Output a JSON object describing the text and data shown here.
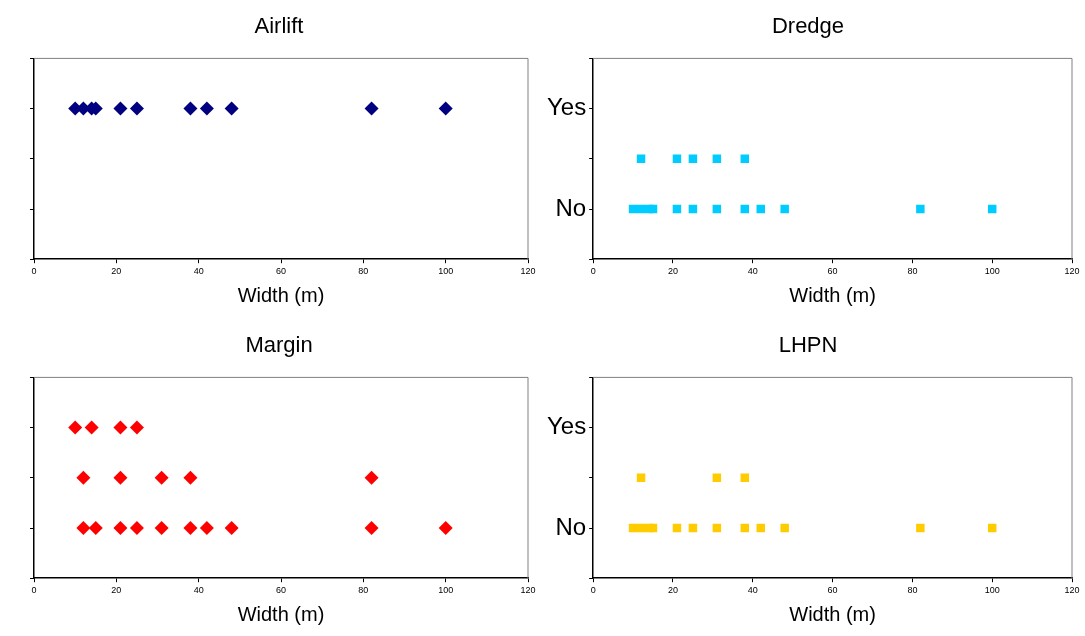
{
  "chart_data": [
    {
      "type": "scatter",
      "orientation": "horizontal",
      "title": "Airlift",
      "xlabel": "Width (m)",
      "xlim": [
        0,
        120
      ],
      "xticks": [
        0,
        20,
        40,
        60,
        80,
        100,
        120
      ],
      "categories": [
        null,
        null,
        null,
        null,
        null
      ],
      "tick_labels": "x",
      "marker": "diamond",
      "series": [
        {
          "color": "#000080",
          "values": [
            null,
            10,
            null,
            null,
            null
          ]
        },
        {
          "color": "#000080",
          "values": [
            null,
            12,
            null,
            null,
            null
          ]
        },
        {
          "color": "#000080",
          "values": [
            null,
            14,
            null,
            null,
            null
          ]
        },
        {
          "color": "#000080",
          "values": [
            null,
            15,
            null,
            null,
            null
          ]
        },
        {
          "color": "#000080",
          "values": [
            null,
            21,
            null,
            null,
            null
          ]
        },
        {
          "color": "#000080",
          "values": [
            null,
            25,
            null,
            null,
            null
          ]
        },
        {
          "color": "#000080",
          "values": [
            null,
            38,
            null,
            null,
            null
          ]
        },
        {
          "color": "#000080",
          "values": [
            null,
            42,
            null,
            null,
            null
          ]
        },
        {
          "color": "#000080",
          "values": [
            null,
            48,
            null,
            null,
            null
          ]
        },
        {
          "color": "#000080",
          "values": [
            null,
            82,
            null,
            null,
            null
          ]
        },
        {
          "color": "#000080",
          "values": [
            null,
            100,
            null,
            null,
            null
          ]
        }
      ]
    },
    {
      "type": "scatter",
      "orientation": "horizontal",
      "title": "Dredge",
      "xlabel": "Width (m)",
      "xlim": [
        0,
        120
      ],
      "xticks": [
        0,
        20,
        40,
        60,
        80,
        100,
        120
      ],
      "categories": [
        null,
        "Yes",
        null,
        "No",
        null
      ],
      "marker": "square",
      "series": [
        {
          "color": "#00ccff",
          "values": [
            null,
            null,
            12,
            10,
            null
          ]
        },
        {
          "color": "#00ccff",
          "values": [
            null,
            null,
            21,
            12,
            null
          ]
        },
        {
          "color": "#00ccff",
          "values": [
            null,
            null,
            25,
            14,
            null
          ]
        },
        {
          "color": "#00ccff",
          "values": [
            null,
            null,
            31,
            15,
            null
          ]
        },
        {
          "color": "#00ccff",
          "values": [
            null,
            null,
            38,
            21,
            null
          ]
        },
        {
          "color": "#00ccff",
          "values": [
            null,
            null,
            null,
            25,
            null
          ]
        },
        {
          "color": "#00ccff",
          "values": [
            null,
            null,
            null,
            31,
            null
          ]
        },
        {
          "color": "#00ccff",
          "values": [
            null,
            null,
            null,
            38,
            null
          ]
        },
        {
          "color": "#00ccff",
          "values": [
            null,
            null,
            null,
            42,
            null
          ]
        },
        {
          "color": "#00ccff",
          "values": [
            null,
            null,
            null,
            48,
            null
          ]
        },
        {
          "color": "#00ccff",
          "values": [
            null,
            null,
            null,
            82,
            null
          ]
        },
        {
          "color": "#00ccff",
          "values": [
            null,
            null,
            null,
            100,
            null
          ]
        }
      ]
    },
    {
      "type": "scatter",
      "orientation": "horizontal",
      "title": "Margin",
      "xlabel": "Width (m)",
      "xlim": [
        0,
        120
      ],
      "xticks": [
        0,
        20,
        40,
        60,
        80,
        100,
        120
      ],
      "categories": [
        null,
        null,
        null,
        null,
        null
      ],
      "tick_labels": "x",
      "marker": "diamond",
      "series": [
        {
          "color": "#ff0000",
          "values": [
            null,
            10,
            12,
            12,
            null
          ]
        },
        {
          "color": "#ff0000",
          "values": [
            null,
            14,
            21,
            15,
            null
          ]
        },
        {
          "color": "#ff0000",
          "values": [
            null,
            21,
            31,
            21,
            null
          ]
        },
        {
          "color": "#ff0000",
          "values": [
            null,
            25,
            38,
            25,
            null
          ]
        },
        {
          "color": "#ff0000",
          "values": [
            null,
            null,
            82,
            31,
            null
          ]
        },
        {
          "color": "#ff0000",
          "values": [
            null,
            null,
            null,
            38,
            null
          ]
        },
        {
          "color": "#ff0000",
          "values": [
            null,
            null,
            null,
            42,
            null
          ]
        },
        {
          "color": "#ff0000",
          "values": [
            null,
            null,
            null,
            48,
            null
          ]
        },
        {
          "color": "#ff0000",
          "values": [
            null,
            null,
            null,
            82,
            null
          ]
        },
        {
          "color": "#ff0000",
          "values": [
            null,
            null,
            null,
            100,
            null
          ]
        }
      ]
    },
    {
      "type": "scatter",
      "orientation": "horizontal",
      "title": "LHPN",
      "xlabel": "Width (m)",
      "xlim": [
        0,
        120
      ],
      "xticks": [
        0,
        20,
        40,
        60,
        80,
        100,
        120
      ],
      "categories": [
        null,
        "Yes",
        null,
        "No",
        null
      ],
      "marker": "square",
      "series": [
        {
          "color": "#ffcc00",
          "values": [
            null,
            null,
            12,
            10,
            null
          ]
        },
        {
          "color": "#ffcc00",
          "values": [
            null,
            null,
            31,
            12,
            null
          ]
        },
        {
          "color": "#ffcc00",
          "values": [
            null,
            null,
            38,
            14,
            null
          ]
        },
        {
          "color": "#ffcc00",
          "values": [
            null,
            null,
            null,
            15,
            null
          ]
        },
        {
          "color": "#ffcc00",
          "values": [
            null,
            null,
            null,
            21,
            null
          ]
        },
        {
          "color": "#ffcc00",
          "values": [
            null,
            null,
            null,
            25,
            null
          ]
        },
        {
          "color": "#ffcc00",
          "values": [
            null,
            null,
            null,
            31,
            null
          ]
        },
        {
          "color": "#ffcc00",
          "values": [
            null,
            null,
            null,
            38,
            null
          ]
        },
        {
          "color": "#ffcc00",
          "values": [
            null,
            null,
            null,
            42,
            null
          ]
        },
        {
          "color": "#ffcc00",
          "values": [
            null,
            null,
            null,
            48,
            null
          ]
        },
        {
          "color": "#ffcc00",
          "values": [
            null,
            null,
            null,
            82,
            null
          ]
        },
        {
          "color": "#ffcc00",
          "values": [
            null,
            null,
            null,
            100,
            null
          ]
        }
      ]
    }
  ]
}
